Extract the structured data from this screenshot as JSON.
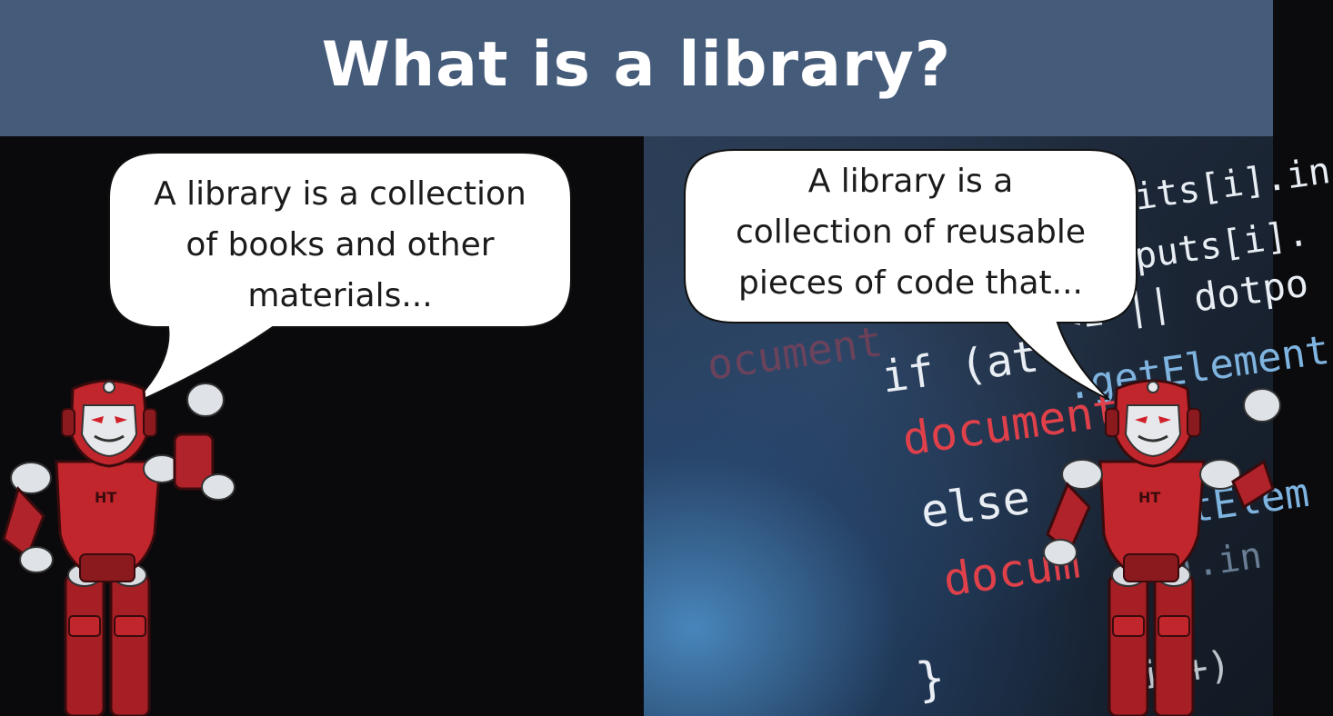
{
  "header": {
    "title": "What is a library?"
  },
  "left_panel": {
    "speech": "A library is a collection of books and other materials...",
    "speech_lines": [
      "A library is a collection",
      "of books and other",
      "materials..."
    ]
  },
  "right_panel": {
    "speech": "A library is a collection of reusable pieces of code that...",
    "speech_lines": [
      "A library is a",
      "collection of reusable",
      "pieces of code that..."
    ],
    "code_fragments": {
      "l1": "its[i].in",
      "l2": "puts[i].",
      "l3": "<1 || dotpo",
      "l4": "if (at",
      "l5": ".getElement",
      "l6": "document",
      "l7": "else",
      "l8": "tElem",
      "l9": "docum",
      "l10": "]).in",
      "l11": "ocument",
      "l12": "}",
      "l13": "i++)"
    }
  },
  "robot": {
    "badge": "HT"
  },
  "colors": {
    "header_bg": "#455b7a",
    "robot_red": "#c0262c",
    "code_red": "#e0404a",
    "code_white": "#e8eef4"
  }
}
